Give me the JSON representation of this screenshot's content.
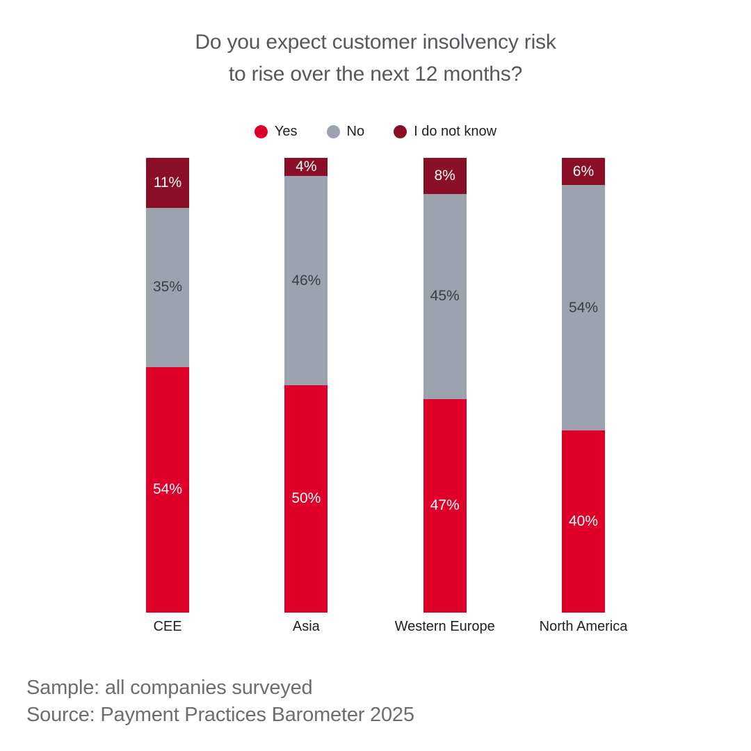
{
  "title": {
    "line1": "Do you expect customer insolvency risk",
    "line2": "to rise over the next 12 months?"
  },
  "legend": [
    {
      "label": "Yes",
      "color": "#de0029"
    },
    {
      "label": "No",
      "color": "#9ca2ae"
    },
    {
      "label": "I do not know",
      "color": "#8a0e26"
    }
  ],
  "footer": {
    "sample": "Sample: all companies surveyed",
    "source": "Source: Payment Practices Barometer 2025"
  },
  "chart_data": {
    "type": "bar",
    "stacked": true,
    "orientation": "vertical",
    "categories": [
      "CEE",
      "Asia",
      "Western Europe",
      "North America"
    ],
    "series": [
      {
        "name": "Yes",
        "color": "#de0029",
        "label_color": "#ffffff",
        "values": [
          54,
          50,
          47,
          40
        ]
      },
      {
        "name": "No",
        "color": "#9ca2ae",
        "label_color": "#3b3d42",
        "values": [
          35,
          46,
          45,
          54
        ]
      },
      {
        "name": "I do not know",
        "color": "#8a0e26",
        "label_color": "#ffffff",
        "values": [
          11,
          4,
          8,
          6
        ]
      }
    ],
    "stack_order_top_to_bottom": [
      "I do not know",
      "No",
      "Yes"
    ],
    "value_suffix": "%",
    "ylim": [
      0,
      100
    ],
    "grid": false,
    "legend_position": "top-center",
    "title": "Do you expect customer insolvency risk to rise over the next 12 months?"
  }
}
